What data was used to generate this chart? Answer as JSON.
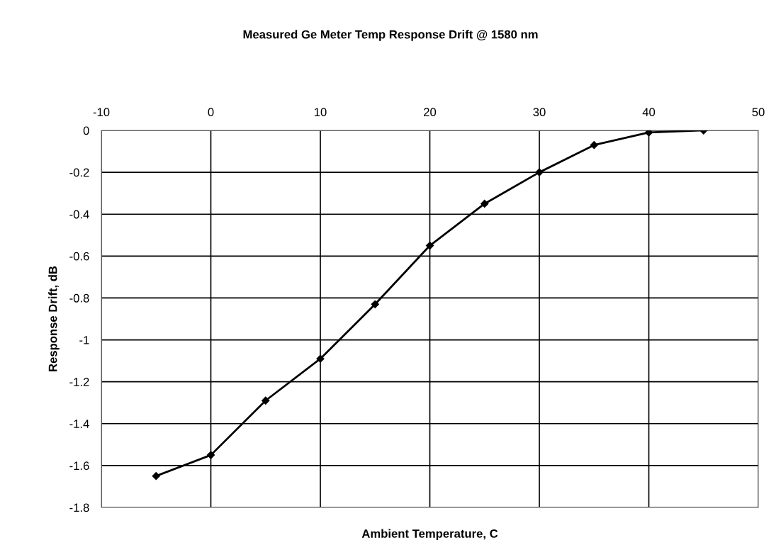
{
  "chart_data": {
    "type": "line",
    "title": "Measured Ge Meter Temp Response Drift @ 1580 nm",
    "xlabel": "Ambient Temperature, C",
    "ylabel": "Response Drift, dB",
    "x": [
      -5,
      0,
      5,
      10,
      15,
      20,
      25,
      30,
      35,
      40,
      45
    ],
    "series": [
      {
        "color": "#000000",
        "values": [
          -1.65,
          -1.55,
          -1.29,
          -1.09,
          -0.83,
          -0.55,
          -0.35,
          -0.2,
          -0.07,
          -0.01,
          0
        ]
      }
    ],
    "xlim": [
      -10,
      50
    ],
    "xticks": [
      -10,
      0,
      10,
      20,
      30,
      40,
      50
    ],
    "ylim": [
      -1.8,
      0
    ],
    "yticks": [
      -1.8,
      -1.6,
      -1.4,
      -1.2,
      -1,
      -0.8,
      -0.6,
      -0.4,
      -0.2,
      0
    ],
    "grid": true,
    "marker": "diamond",
    "line_style": "solid"
  }
}
